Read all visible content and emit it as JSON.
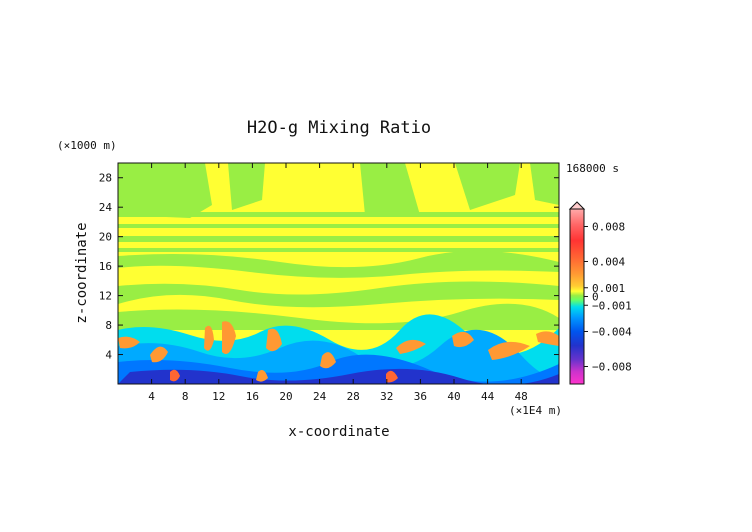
{
  "chart_data": {
    "type": "heatmap",
    "title": "H2O-g Mixing Ratio",
    "xlabel": "x-coordinate",
    "ylabel": "z-coordinate",
    "x_unit": "(×1E4 m)",
    "y_unit": "(×1000 m)",
    "time_label": "168000 s",
    "xlim": [
      0,
      52.5
    ],
    "ylim": [
      0,
      30
    ],
    "x_ticks": [
      4,
      8,
      12,
      16,
      20,
      24,
      28,
      32,
      36,
      40,
      44,
      48
    ],
    "y_ticks": [
      4,
      8,
      12,
      16,
      20,
      24,
      28
    ],
    "colorbar": {
      "ticks": [
        {
          "value": 0.008,
          "label": "0.008"
        },
        {
          "value": 0.004,
          "label": "0.004"
        },
        {
          "value": 0.001,
          "label": "0.001"
        },
        {
          "value": 0,
          "label": "0"
        },
        {
          "value": -0.001,
          "label": "−0.001"
        },
        {
          "value": -0.004,
          "label": "−0.004"
        },
        {
          "value": -0.008,
          "label": "−0.008"
        }
      ],
      "range": [
        -0.01,
        0.01
      ],
      "extend_top": true,
      "colors": [
        "#ff33cc",
        "#9933cc",
        "#3333cc",
        "#0066ff",
        "#00aaff",
        "#00ffdd",
        "#66ff66",
        "#99ee44",
        "#ffff33",
        "#ffcc33",
        "#ff9933",
        "#ff6633",
        "#ff3333",
        "#ff6666",
        "#ff9999"
      ]
    }
  }
}
